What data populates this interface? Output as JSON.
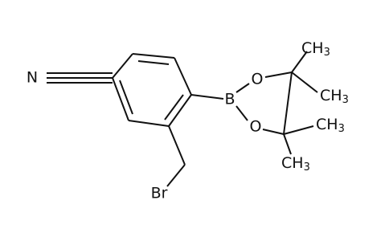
{
  "atoms": [
    {
      "label": "N"
    },
    {
      "label": "Br"
    },
    {
      "label": "B"
    },
    {
      "label": "O"
    },
    {
      "label": "O"
    },
    {
      "label": "CH",
      "sub": "3"
    },
    {
      "label": "CH",
      "sub": "3"
    },
    {
      "label": "CH",
      "sub": "3"
    },
    {
      "label": "CH",
      "sub": "3"
    }
  ]
}
